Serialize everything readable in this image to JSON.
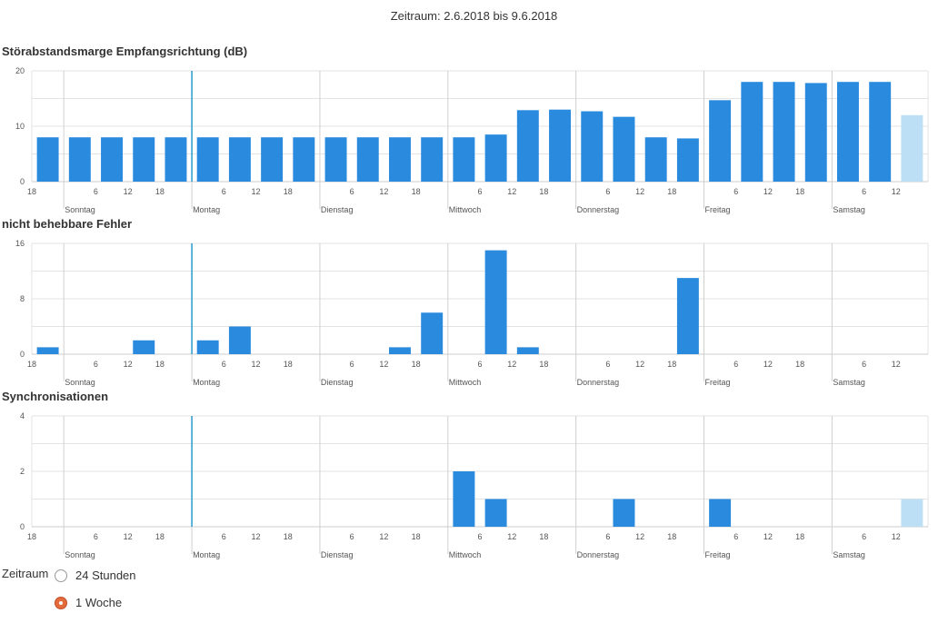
{
  "header": {
    "period_text": "Zeitraum: 2.6.2018 bis 9.6.2018"
  },
  "colors": {
    "bar": "#2a8ade",
    "bar_partial": "#bcdff5",
    "marker": "#2a9bd0",
    "grid": "#e3e3e3",
    "day_line": "#d0d0d0"
  },
  "x_axis": {
    "hour_ticks": [
      {
        "label": "18",
        "h": 0
      },
      {
        "label": "6",
        "h": 12
      },
      {
        "label": "12",
        "h": 18
      },
      {
        "label": "18",
        "h": 24
      },
      {
        "label": "6",
        "h": 36
      },
      {
        "label": "12",
        "h": 42
      },
      {
        "label": "18",
        "h": 48
      },
      {
        "label": "6",
        "h": 60
      },
      {
        "label": "12",
        "h": 66
      },
      {
        "label": "18",
        "h": 72
      },
      {
        "label": "6",
        "h": 84
      },
      {
        "label": "12",
        "h": 90
      },
      {
        "label": "18",
        "h": 96
      },
      {
        "label": "6",
        "h": 108
      },
      {
        "label": "12",
        "h": 114
      },
      {
        "label": "18",
        "h": 120
      },
      {
        "label": "6",
        "h": 132
      },
      {
        "label": "12",
        "h": 138
      },
      {
        "label": "18",
        "h": 144
      },
      {
        "label": "6",
        "h": 156
      },
      {
        "label": "12",
        "h": 162
      }
    ],
    "days": [
      {
        "label": "Sonntag",
        "h": 6
      },
      {
        "label": "Montag",
        "h": 30
      },
      {
        "label": "Dienstag",
        "h": 54
      },
      {
        "label": "Mittwoch",
        "h": 78
      },
      {
        "label": "Donnerstag",
        "h": 102
      },
      {
        "label": "Freitag",
        "h": 126
      },
      {
        "label": "Samstag",
        "h": 150
      }
    ]
  },
  "chart_data": [
    {
      "type": "bar",
      "title": "Störabstandsmarge Empfangsrichtung (dB)",
      "ylim": [
        0,
        20
      ],
      "yticks": [
        0,
        10,
        20
      ],
      "bar_hours_per_bar": 6,
      "x_start_hours": [
        0,
        6,
        12,
        18,
        24,
        30,
        36,
        42,
        48,
        54,
        60,
        66,
        72,
        78,
        84,
        90,
        96,
        102,
        108,
        114,
        120,
        126,
        132,
        138,
        144,
        150,
        156,
        162
      ],
      "values": [
        8,
        8,
        8,
        8,
        8,
        8,
        8,
        8,
        8,
        8,
        8,
        8,
        8,
        8,
        8.5,
        12.9,
        13,
        12.7,
        11.7,
        8,
        7.8,
        14.7,
        18,
        18,
        17.8,
        18,
        18,
        12
      ],
      "partial": [
        false,
        false,
        false,
        false,
        false,
        false,
        false,
        false,
        false,
        false,
        false,
        false,
        false,
        false,
        false,
        false,
        false,
        false,
        false,
        false,
        false,
        false,
        false,
        false,
        false,
        false,
        false,
        true
      ]
    },
    {
      "type": "bar",
      "title": "nicht behebbare Fehler",
      "ylim": [
        0,
        16
      ],
      "yticks": [
        0,
        8,
        16
      ],
      "bar_hours_per_bar": 6,
      "x_start_hours": [
        0,
        6,
        12,
        18,
        24,
        30,
        36,
        42,
        48,
        54,
        60,
        66,
        72,
        78,
        84,
        90,
        96,
        102,
        108,
        114,
        120,
        126,
        132,
        138,
        144,
        150,
        156,
        162
      ],
      "values": [
        1,
        0,
        0,
        2,
        0,
        2,
        4,
        0,
        0,
        0,
        0,
        1,
        6,
        0,
        15,
        1,
        0,
        0,
        0,
        0,
        11,
        0,
        0,
        0,
        0,
        0,
        0,
        0
      ],
      "partial": [
        false,
        false,
        false,
        false,
        false,
        false,
        false,
        false,
        false,
        false,
        false,
        false,
        false,
        false,
        false,
        false,
        false,
        false,
        false,
        false,
        false,
        false,
        false,
        false,
        false,
        false,
        false,
        false
      ]
    },
    {
      "type": "bar",
      "title": "Synchronisationen",
      "ylim": [
        0,
        4
      ],
      "yticks": [
        0,
        2,
        4
      ],
      "bar_hours_per_bar": 6,
      "x_start_hours": [
        0,
        6,
        12,
        18,
        24,
        30,
        36,
        42,
        48,
        54,
        60,
        66,
        72,
        78,
        84,
        90,
        96,
        102,
        108,
        114,
        120,
        126,
        132,
        138,
        144,
        150,
        156,
        162
      ],
      "values": [
        0,
        0,
        0,
        0,
        0,
        0,
        0,
        0,
        0,
        0,
        0,
        0,
        0,
        2,
        1,
        0,
        0,
        0,
        1,
        0,
        0,
        1,
        0,
        0,
        0,
        0,
        0,
        1
      ],
      "partial": [
        false,
        false,
        false,
        false,
        false,
        false,
        false,
        false,
        false,
        false,
        false,
        false,
        false,
        false,
        false,
        false,
        false,
        false,
        false,
        false,
        false,
        false,
        false,
        false,
        false,
        false,
        false,
        true
      ]
    }
  ],
  "range_selector": {
    "label": "Zeitraum",
    "options": [
      {
        "label": "24 Stunden",
        "checked": false
      },
      {
        "label": "1 Woche",
        "checked": true
      }
    ]
  }
}
